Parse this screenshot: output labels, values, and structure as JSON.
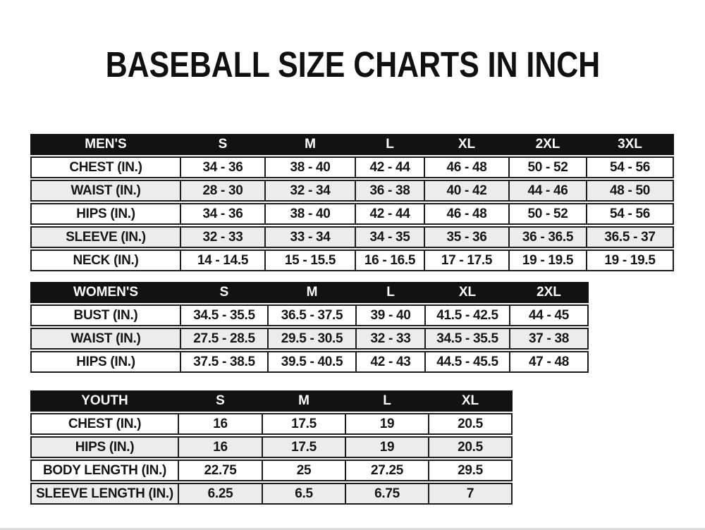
{
  "title": "BASEBALL SIZE CHARTS IN INCH",
  "colors": {
    "header_bg": "#121212",
    "header_text": "#ffffff",
    "row_bg": "#ffffff",
    "row_alt_bg": "#ececec",
    "border": "#1c1c1c",
    "text": "#151515"
  },
  "chart_data": [
    {
      "type": "table",
      "title": "MEN'S",
      "columns": [
        "MEN'S",
        "S",
        "M",
        "L",
        "XL",
        "2XL",
        "3XL"
      ],
      "rows": [
        [
          "CHEST (IN.)",
          "34 - 36",
          "38 - 40",
          "42 - 44",
          "46 - 48",
          "50 - 52",
          "54 - 56"
        ],
        [
          "WAIST (IN.)",
          "28 - 30",
          "32 - 34",
          "36 - 38",
          "40 - 42",
          "44 - 46",
          "48 - 50"
        ],
        [
          "HIPS (IN.)",
          "34 - 36",
          "38 - 40",
          "42 - 44",
          "46 - 48",
          "50 - 52",
          "54 - 56"
        ],
        [
          "SLEEVE (IN.)",
          "32 - 33",
          "33 - 34",
          "34 - 35",
          "35 - 36",
          "36 - 36.5",
          "36.5 - 37"
        ],
        [
          "NECK (IN.)",
          "14 - 14.5",
          "15 - 15.5",
          "16 - 16.5",
          "17 - 17.5",
          "19 - 19.5",
          "19 - 19.5"
        ]
      ]
    },
    {
      "type": "table",
      "title": "WOMEN'S",
      "columns": [
        "WOMEN'S",
        "S",
        "M",
        "L",
        "XL",
        "2XL"
      ],
      "rows": [
        [
          "BUST (IN.)",
          "34.5 - 35.5",
          "36.5 - 37.5",
          "39 - 40",
          "41.5 - 42.5",
          "44 - 45"
        ],
        [
          "WAIST (IN.)",
          "27.5 - 28.5",
          "29.5 - 30.5",
          "32 - 33",
          "34.5 - 35.5",
          "37 - 38"
        ],
        [
          "HIPS (IN.)",
          "37.5 - 38.5",
          "39.5 - 40.5",
          "42 - 43",
          "44.5 - 45.5",
          "47 - 48"
        ]
      ]
    },
    {
      "type": "table",
      "title": "YOUTH",
      "columns": [
        "YOUTH",
        "S",
        "M",
        "L",
        "XL"
      ],
      "rows": [
        [
          "CHEST (IN.)",
          "16",
          "17.5",
          "19",
          "20.5"
        ],
        [
          "HIPS (IN.)",
          "16",
          "17.5",
          "19",
          "20.5"
        ],
        [
          "BODY LENGTH (IN.)",
          "22.75",
          "25",
          "27.25",
          "29.5"
        ],
        [
          "SLEEVE LENGTH (IN.)",
          "6.25",
          "6.5",
          "6.75",
          "7"
        ]
      ]
    }
  ]
}
